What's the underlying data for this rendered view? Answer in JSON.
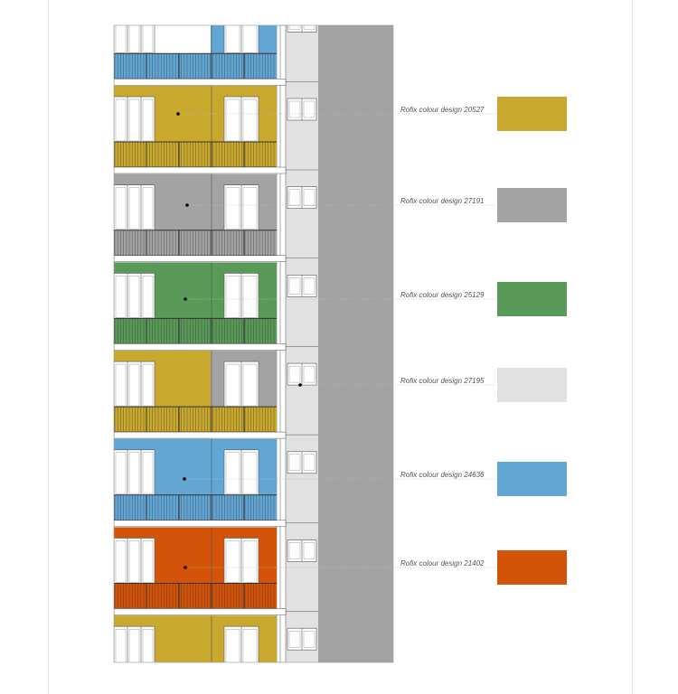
{
  "legend": [
    {
      "label": "Rofix colour design 20527",
      "color": "#C9A82E"
    },
    {
      "label": "Rofix colour design 27191",
      "color": "#A3A3A3"
    },
    {
      "label": "Rofix colour design 25129",
      "color": "#5A9A58"
    },
    {
      "label": "Rofix colour design 27195",
      "color": "#E1E1E1"
    },
    {
      "label": "Rofix colour design 24636",
      "color": "#62A7D4"
    },
    {
      "label": "Rofix colour design 21402",
      "color": "#D35408"
    }
  ],
  "floors": [
    {
      "color": "#62A7D4",
      "left_color": "#FFFFFF",
      "railing": "#62A7D4"
    },
    {
      "color": "#C9A82E",
      "left_color": "#C9A82E",
      "railing": "#C9A82E"
    },
    {
      "color": "#A3A3A3",
      "left_color": "#A3A3A3",
      "railing": "#A3A3A3"
    },
    {
      "color": "#5A9A58",
      "left_color": "#5A9A58",
      "railing": "#5A9A58"
    },
    {
      "color": "#A3A3A3",
      "left_color": "#C9A82E",
      "railing": "#C9A82E"
    },
    {
      "color": "#62A7D4",
      "left_color": "#62A7D4",
      "railing": "#62A7D4"
    },
    {
      "color": "#D35408",
      "left_color": "#D35408",
      "railing": "#D35408"
    },
    {
      "color": "#C9A82E",
      "left_color": "#C9A82E",
      "railing": "#C9A82E"
    }
  ],
  "colors": {
    "core": "#A3A3A3",
    "stair": "#E1E1E1",
    "slab": "#FFFFFF",
    "line": "#555555",
    "leader": "#BBBBBB"
  }
}
